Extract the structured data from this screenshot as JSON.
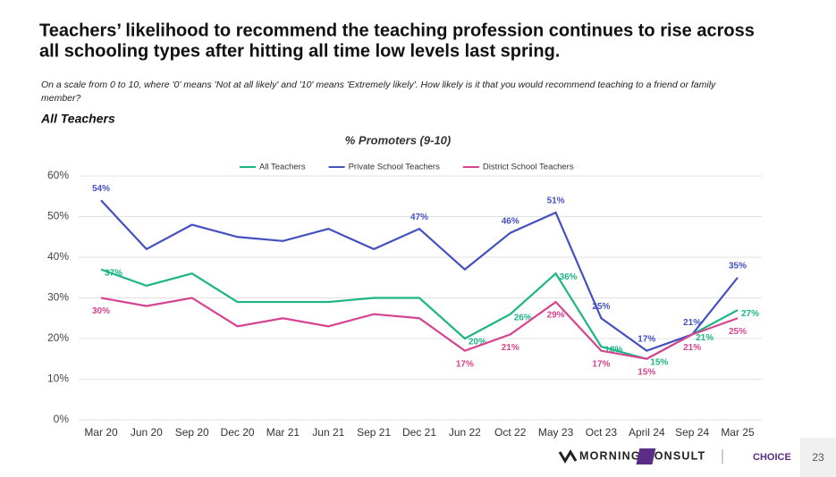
{
  "header": {
    "title_line1": "Teachers’ likelihood to recommend the teaching profession continues to rise across",
    "title_line2": "all schooling types after hitting all time low levels last spring.",
    "question_line1": "On a scale from 0 to 10, where '0' means 'Not at all likely' and '10' means 'Extremely likely'. How likely is it that you would recommend teaching to a friend or family",
    "question_line2": "member?",
    "segment": "All Teachers"
  },
  "chart_data": {
    "type": "line",
    "title": "% Promoters (9-10)",
    "categories": [
      "Mar 20",
      "Jun 20",
      "Sep 20",
      "Dec 20",
      "Mar 21",
      "Jun 21",
      "Sep 21",
      "Dec 21",
      "Jun 22",
      "Oct 22",
      "May 23",
      "Oct 23",
      "April 24",
      "Sep 24",
      "Mar 25"
    ],
    "series": [
      {
        "name": "All Teachers",
        "color": "#1db584",
        "values": [
          37,
          33,
          36,
          29,
          29,
          29,
          30,
          30,
          20,
          26,
          36,
          18,
          15,
          21,
          27
        ],
        "value_labels": [
          "37%",
          null,
          null,
          null,
          null,
          null,
          null,
          null,
          "20%",
          "26%",
          "36%",
          "18%",
          "15%",
          "21%",
          "27%"
        ]
      },
      {
        "name": "Private School Teachers",
        "color": "#4450c0",
        "values": [
          54,
          42,
          48,
          45,
          44,
          47,
          42,
          47,
          37,
          46,
          51,
          25,
          17,
          21,
          35
        ],
        "value_labels": [
          "54%",
          null,
          null,
          null,
          null,
          null,
          null,
          "47%",
          null,
          "46%",
          "51%",
          "25%",
          "17%",
          "21%",
          "35%"
        ]
      },
      {
        "name": "District School Teachers",
        "color": "#d6438f",
        "values": [
          30,
          28,
          30,
          23,
          25,
          23,
          26,
          25,
          17,
          21,
          29,
          17,
          15,
          21,
          25
        ],
        "value_labels": [
          "30%",
          null,
          null,
          null,
          null,
          null,
          null,
          null,
          "17%",
          "21%",
          "29%",
          "17%",
          "15%",
          "21%",
          "25%"
        ]
      }
    ],
    "ylim": [
      0,
      60
    ],
    "yticks": [
      {
        "value": 0,
        "label": "0%"
      },
      {
        "value": 10,
        "label": "10%"
      },
      {
        "value": 20,
        "label": "20%"
      },
      {
        "value": 30,
        "label": "30%"
      },
      {
        "value": 40,
        "label": "40%"
      },
      {
        "value": 50,
        "label": "50%"
      },
      {
        "value": 60,
        "label": "60%"
      }
    ],
    "grid": true,
    "legend": "top"
  },
  "footer": {
    "brand": "MORNING CONSULT",
    "partner": "CHOICE",
    "page_number": 23
  }
}
